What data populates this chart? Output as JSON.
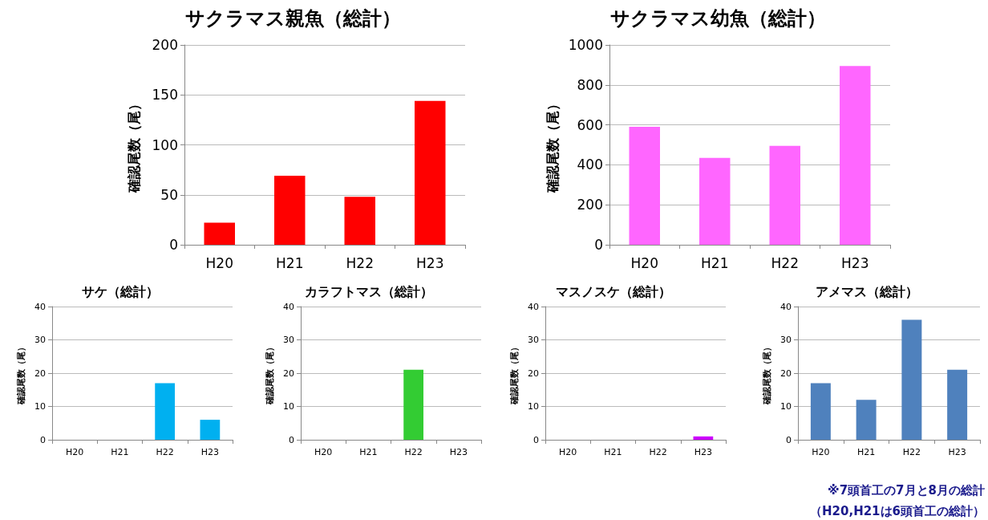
{
  "chart_data": [
    {
      "type": "bar",
      "title": "サクラマス親魚（総計）",
      "ylabel": "確認尾数（尾）",
      "categories": [
        "H20",
        "H21",
        "H22",
        "H23"
      ],
      "values": [
        22,
        69,
        48,
        144
      ],
      "color": "#ff0000",
      "ylim": [
        0,
        200
      ],
      "yticks": [
        0,
        50,
        100,
        150,
        200
      ],
      "grid": "y"
    },
    {
      "type": "bar",
      "title": "サクラマス幼魚（総計）",
      "ylabel": "確認尾数（尾）",
      "categories": [
        "H20",
        "H21",
        "H22",
        "H23"
      ],
      "values": [
        590,
        435,
        495,
        895
      ],
      "color": "#ff66ff",
      "ylim": [
        0,
        1000
      ],
      "yticks": [
        0,
        200,
        400,
        600,
        800,
        1000
      ],
      "grid": "y"
    },
    {
      "type": "bar",
      "title": "サケ（総計）",
      "ylabel": "確認尾数（尾）",
      "categories": [
        "H20",
        "H21",
        "H22",
        "H23"
      ],
      "values": [
        0,
        0,
        17,
        6
      ],
      "color": "#00b0f0",
      "ylim": [
        0,
        40
      ],
      "yticks": [
        0,
        10,
        20,
        30,
        40
      ],
      "grid": "y"
    },
    {
      "type": "bar",
      "title": "カラフトマス（総計）",
      "ylabel": "確認尾数（尾）",
      "categories": [
        "H20",
        "H21",
        "H22",
        "H23"
      ],
      "values": [
        0,
        0,
        21,
        0
      ],
      "color": "#33cc33",
      "ylim": [
        0,
        40
      ],
      "yticks": [
        0,
        10,
        20,
        30,
        40
      ],
      "grid": "y"
    },
    {
      "type": "bar",
      "title": "マスノスケ（総計）",
      "ylabel": "確認尾数（尾）",
      "categories": [
        "H20",
        "H21",
        "H22",
        "H23"
      ],
      "values": [
        0,
        0,
        0,
        1
      ],
      "color": "#cc00ff",
      "ylim": [
        0,
        40
      ],
      "yticks": [
        0,
        10,
        20,
        30,
        40
      ],
      "grid": "y"
    },
    {
      "type": "bar",
      "title": "アメマス（総計）",
      "ylabel": "確認尾数（尾）",
      "categories": [
        "H20",
        "H21",
        "H22",
        "H23"
      ],
      "values": [
        17,
        12,
        36,
        21
      ],
      "color": "#4f81bd",
      "ylim": [
        0,
        40
      ],
      "yticks": [
        0,
        10,
        20,
        30,
        40
      ],
      "grid": "y",
      "annotations": [
        "※7頭首工の7月と8月の総計",
        "（H20,H21は6頭首工の総計）"
      ]
    }
  ]
}
